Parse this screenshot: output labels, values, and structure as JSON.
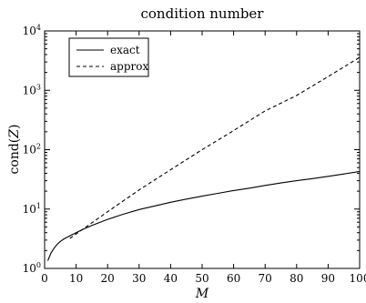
{
  "chart_data": {
    "type": "line",
    "title": "condition number",
    "xlabel": "M",
    "ylabel_prefix": "cond(",
    "ylabel_var": "Z",
    "ylabel_suffix": ")",
    "xlim": [
      0,
      100
    ],
    "ylim": [
      1,
      10000
    ],
    "yscale": "log",
    "grid": false,
    "legend_position": "top-left",
    "x_ticks": [
      0,
      10,
      20,
      30,
      40,
      50,
      60,
      70,
      80,
      90,
      100
    ],
    "x_tick_labels": [
      "0",
      "10",
      "20",
      "30",
      "40",
      "50",
      "60",
      "70",
      "80",
      "90",
      "100"
    ],
    "y_tick_base": "10",
    "y_ticks": [
      1,
      10,
      100,
      1000,
      10000
    ],
    "y_tick_exponents": [
      "0",
      "1",
      "2",
      "3",
      "4"
    ],
    "series": [
      {
        "name": "exact",
        "style": "solid",
        "x": [
          1,
          2,
          3,
          4,
          5,
          6,
          8,
          10,
          12,
          15,
          20,
          25,
          30,
          35,
          40,
          45,
          50,
          55,
          60,
          65,
          70,
          75,
          80,
          85,
          90,
          95,
          100
        ],
        "y": [
          1.35,
          1.8,
          2.2,
          2.55,
          2.85,
          3.1,
          3.55,
          4.0,
          4.5,
          5.3,
          6.7,
          8.2,
          9.8,
          11.3,
          13.0,
          14.7,
          16.5,
          18.4,
          20.5,
          22.5,
          25.0,
          27.5,
          30.0,
          32.5,
          35.5,
          39.0,
          43.0
        ]
      },
      {
        "name": "approx",
        "style": "dashed",
        "x": [
          8,
          20,
          30,
          40,
          50,
          60,
          70,
          80,
          90,
          100
        ],
        "y": [
          3.2,
          9.0,
          21,
          46,
          100,
          210,
          450,
          820,
          1700,
          3600
        ]
      }
    ]
  }
}
